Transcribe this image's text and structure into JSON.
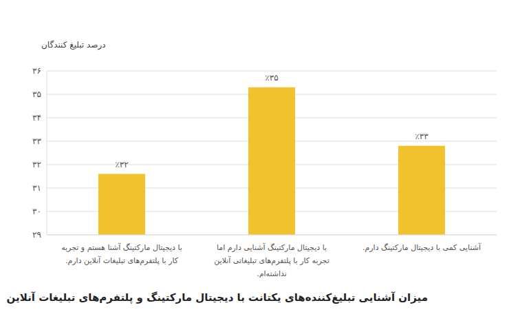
{
  "chart_data": {
    "type": "bar",
    "title": "میزان آشنایی تبلیغ‌کننده‌های یکتانت با دیجیتال مارکتینگ و پلتفرم‌های تبلیغات آنلاین",
    "ylabel": "درصد تبلیغ کنندگان",
    "categories": [
      "با دیجیتال مارکتینگ آشنا هستم و تجربه کار با پلتفرم‌های تبلیغات آنلاین دارم.",
      "با دیجیتال مارکتینگ آشنایی دارم اما تجربه کار با پلتفرم‌های تبلیغاتی آنلاین نداشته‌ام.",
      "آشنایی کمی با دیجیتال مارکتینگ دارم."
    ],
    "values": [
      31.6,
      35.3,
      32.8
    ],
    "value_labels": [
      "٪۳۲",
      "٪۳۵",
      "٪۳۳"
    ],
    "color": "#f2c12e",
    "ylim": [
      29,
      36
    ],
    "yticks": [
      {
        "value": 29,
        "label": "۲۹"
      },
      {
        "value": 30,
        "label": "۳۰"
      },
      {
        "value": 31,
        "label": "۳۱"
      },
      {
        "value": 32,
        "label": "۳۲"
      },
      {
        "value": 33,
        "label": "۳۳"
      },
      {
        "value": 34,
        "label": "۳۴"
      },
      {
        "value": 35,
        "label": "۳۵"
      },
      {
        "value": 36,
        "label": "۳۶"
      }
    ],
    "grid": true,
    "data_labels": true
  }
}
